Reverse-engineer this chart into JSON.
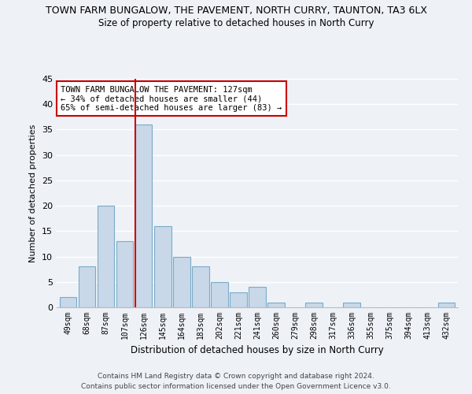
{
  "title": "TOWN FARM BUNGALOW, THE PAVEMENT, NORTH CURRY, TAUNTON, TA3 6LX",
  "subtitle": "Size of property relative to detached houses in North Curry",
  "xlabel": "Distribution of detached houses by size in North Curry",
  "ylabel": "Number of detached properties",
  "categories": [
    "49sqm",
    "68sqm",
    "87sqm",
    "107sqm",
    "126sqm",
    "145sqm",
    "164sqm",
    "183sqm",
    "202sqm",
    "221sqm",
    "241sqm",
    "260sqm",
    "279sqm",
    "298sqm",
    "317sqm",
    "336sqm",
    "355sqm",
    "375sqm",
    "394sqm",
    "413sqm",
    "432sqm"
  ],
  "values": [
    2,
    8,
    20,
    13,
    36,
    16,
    10,
    8,
    5,
    3,
    4,
    1,
    0,
    1,
    0,
    1,
    0,
    0,
    0,
    0,
    1
  ],
  "bar_color": "#c8d8e8",
  "bar_edge_color": "#7aaac8",
  "highlight_index": 4,
  "highlight_line_color": "#cc0000",
  "ylim": [
    0,
    45
  ],
  "yticks": [
    0,
    5,
    10,
    15,
    20,
    25,
    30,
    35,
    40,
    45
  ],
  "annotation_text": "TOWN FARM BUNGALOW THE PAVEMENT: 127sqm\n← 34% of detached houses are smaller (44)\n65% of semi-detached houses are larger (83) →",
  "annotation_box_color": "#ffffff",
  "annotation_box_edge": "#cc0000",
  "footer_line1": "Contains HM Land Registry data © Crown copyright and database right 2024.",
  "footer_line2": "Contains public sector information licensed under the Open Government Licence v3.0.",
  "background_color": "#eef2f7",
  "grid_color": "#ffffff"
}
